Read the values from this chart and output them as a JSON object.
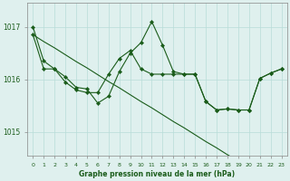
{
  "background_color": "#dff0ee",
  "grid_color": "#b8ddd8",
  "line_color": "#1a5c1a",
  "marker_color": "#1a5c1a",
  "title": "Graphe pression niveau de la mer (hPa)",
  "ylabel_ticks": [
    1015,
    1016,
    1017
  ],
  "xlim": [
    -0.5,
    23.5
  ],
  "ylim": [
    1014.55,
    1017.45
  ],
  "series1_x": [
    0,
    1,
    2,
    3,
    4,
    5,
    6,
    7,
    8,
    9,
    10,
    11,
    12,
    13,
    14,
    15,
    16,
    17,
    18,
    19,
    20,
    21,
    22,
    23
  ],
  "series1_y": [
    1017.0,
    1016.35,
    1016.2,
    1016.05,
    1015.85,
    1015.82,
    1015.55,
    1015.68,
    1016.15,
    1016.5,
    1016.7,
    1017.1,
    1016.65,
    1016.15,
    1016.1,
    1016.1,
    1015.58,
    1015.42,
    1015.44,
    1015.42,
    1015.42,
    1016.02,
    1016.12,
    1016.2
  ],
  "series2_x": [
    0,
    1,
    2,
    3,
    4,
    5,
    6,
    7,
    8,
    9,
    10,
    11,
    12,
    13,
    14,
    15,
    16,
    17,
    18,
    19,
    20,
    21,
    22,
    23
  ],
  "series2_y": [
    1016.85,
    1016.72,
    1016.6,
    1016.47,
    1016.34,
    1016.22,
    1016.09,
    1015.96,
    1015.84,
    1015.71,
    1015.58,
    1015.46,
    1015.33,
    1015.2,
    1015.08,
    1014.95,
    1014.82,
    1014.7,
    1014.57,
    1014.45,
    1014.45,
    1014.45,
    1014.45,
    1014.45
  ],
  "series3_x": [
    0,
    1,
    2,
    3,
    4,
    5,
    6,
    7,
    8,
    9,
    10,
    11,
    12,
    13,
    14,
    15,
    16,
    17,
    18,
    19,
    20,
    21,
    22,
    23
  ],
  "series3_y": [
    1016.85,
    1016.2,
    1016.2,
    1015.95,
    1015.8,
    1015.75,
    1015.75,
    1016.1,
    1016.4,
    1016.55,
    1016.2,
    1016.1,
    1016.1,
    1016.1,
    1016.1,
    1016.1,
    1015.58,
    1015.42,
    1015.44,
    1015.42,
    1015.42,
    1016.02,
    1016.12,
    1016.2
  ],
  "xtick_labels": [
    "0",
    "1",
    "2",
    "3",
    "4",
    "5",
    "6",
    "7",
    "8",
    "9",
    "10",
    "11",
    "12",
    "13",
    "14",
    "15",
    "16",
    "17",
    "18",
    "19",
    "20",
    "21",
    "22",
    "23"
  ]
}
